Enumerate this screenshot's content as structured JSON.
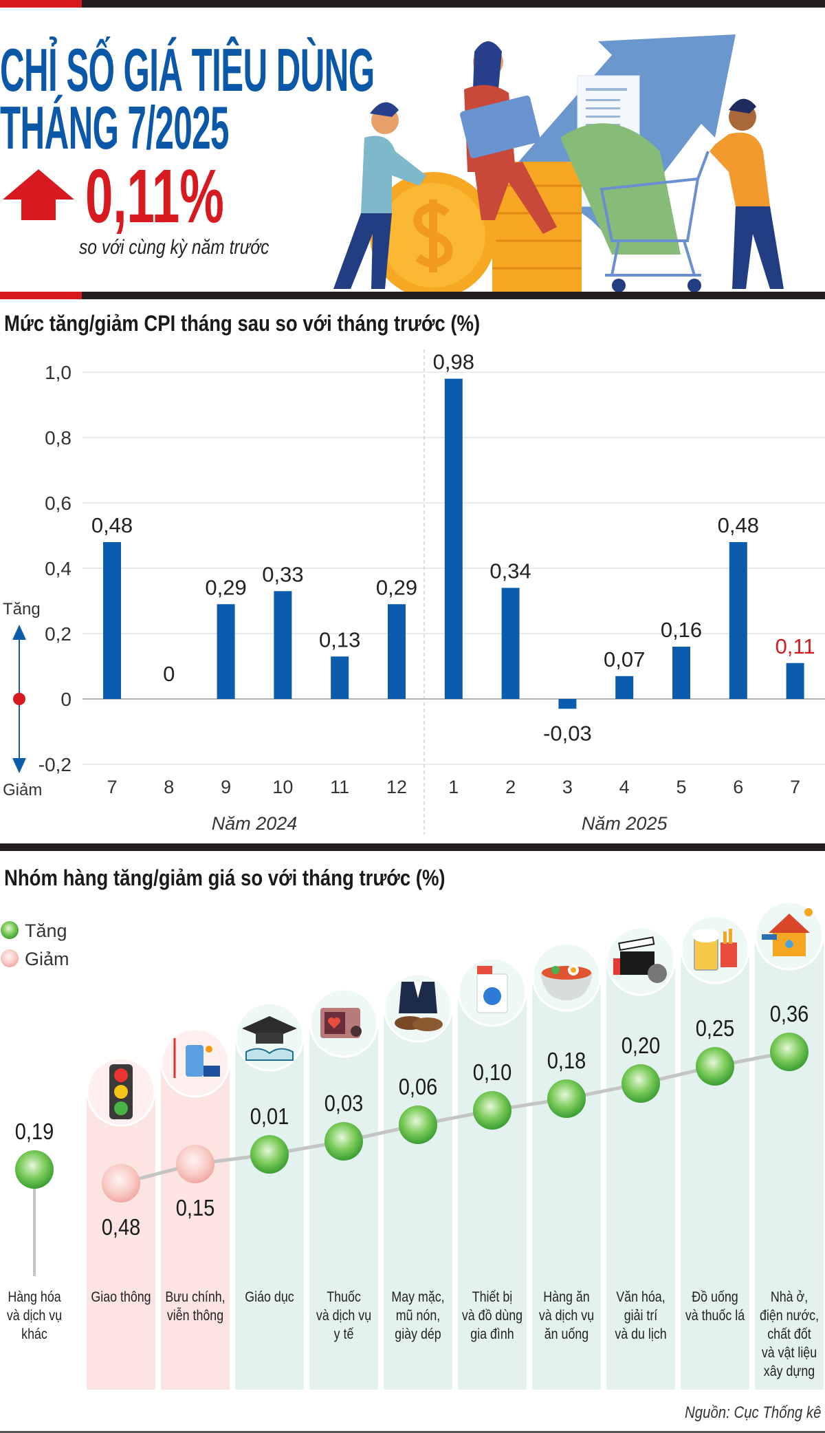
{
  "header": {
    "title_line1": "CHỈ SỐ GIÁ TIÊU DÙNG",
    "title_line2": "THÁNG 7/2025",
    "headline_value": "0,11%",
    "headline_direction": "up",
    "headline_subtitle": "so với cùng kỳ năm trước"
  },
  "colors": {
    "blue": "#0b5cad",
    "red": "#d71920",
    "dark": "#231f20",
    "green": "#3aa23a",
    "pink": "#f4aaa4"
  },
  "chart_data": [
    {
      "type": "bar",
      "title": "Mức tăng/giảm CPI tháng sau so với tháng trước (%)",
      "categories": [
        "7",
        "8",
        "9",
        "10",
        "11",
        "12",
        "1",
        "2",
        "3",
        "4",
        "5",
        "6",
        "7"
      ],
      "values": [
        0.48,
        0,
        0.29,
        0.33,
        0.13,
        0.29,
        0.98,
        0.34,
        -0.03,
        0.07,
        0.16,
        0.48,
        0.11
      ],
      "value_labels": [
        "0,48",
        "0",
        "0,29",
        "0,33",
        "0,13",
        "0,29",
        "0,98",
        "0,34",
        "-0,03",
        "0,07",
        "0,16",
        "0,48",
        "0,11"
      ],
      "highlight_index": 12,
      "year_groups": [
        {
          "label": "Năm 2024",
          "count": 6
        },
        {
          "label": "Năm 2025",
          "count": 7
        }
      ],
      "yticks": [
        1.0,
        0.8,
        0.6,
        0.4,
        0.2,
        0,
        -0.2
      ],
      "ytick_labels": [
        "1,0",
        "0,8",
        "0,6",
        "0,4",
        "0,2",
        "0",
        "-0,2"
      ],
      "ylim": [
        -0.2,
        1.0
      ],
      "grid": true,
      "legend": {
        "up": "Tăng",
        "down": "Giảm"
      }
    },
    {
      "type": "scatter",
      "title": "Nhóm hàng tăng/giảm giá so với tháng trước (%)",
      "legend": {
        "up": "Tăng",
        "down": "Giảm"
      },
      "items": [
        {
          "category": "Hàng hóa và dịch vụ khác",
          "lines": [
            "Hàng hóa",
            "và dịch vụ",
            "khác"
          ],
          "value": 0.19,
          "label": "0,19",
          "icon": "none"
        },
        {
          "category": "Giao thông",
          "lines": [
            "Giao thông"
          ],
          "value": -0.48,
          "label": "0,48",
          "icon": "traffic-light"
        },
        {
          "category": "Bưu chính, viễn thông",
          "lines": [
            "Bưu chính,",
            "viễn thông"
          ],
          "value": -0.15,
          "label": "0,15",
          "icon": "telecom"
        },
        {
          "category": "Giáo dục",
          "lines": [
            "Giáo dục"
          ],
          "value": 0.01,
          "label": "0,01",
          "icon": "graduation-cap"
        },
        {
          "category": "Thuốc và dịch vụ y tế",
          "lines": [
            "Thuốc",
            "và dịch vụ",
            "y tế"
          ],
          "value": 0.03,
          "label": "0,03",
          "icon": "medical"
        },
        {
          "category": "May mặc, mũ nón, giày dép",
          "lines": [
            "May mặc,",
            "mũ nón,",
            "giày dép"
          ],
          "value": 0.06,
          "label": "0,06",
          "icon": "clothing"
        },
        {
          "category": "Thiết bị và đồ dùng gia đình",
          "lines": [
            "Thiết bị",
            "và đồ dùng",
            "gia đình"
          ],
          "value": 0.1,
          "label": "0,10",
          "icon": "washing-machine"
        },
        {
          "category": "Hàng ăn và dịch vụ ăn uống",
          "lines": [
            "Hàng ăn",
            "và dịch vụ",
            "ăn uống"
          ],
          "value": 0.18,
          "label": "0,18",
          "icon": "food-bowl"
        },
        {
          "category": "Văn hóa, giải trí và du lịch",
          "lines": [
            "Văn hóa,",
            "giải trí",
            "và du lịch"
          ],
          "value": 0.2,
          "label": "0,20",
          "icon": "clapperboard"
        },
        {
          "category": "Đồ uống và thuốc lá",
          "lines": [
            "Đồ uống",
            "và thuốc lá"
          ],
          "value": 0.25,
          "label": "0,25",
          "icon": "beer"
        },
        {
          "category": "Nhà ở, điện nước, chất đốt và vật liệu xây dựng",
          "lines": [
            "Nhà ở,",
            "điện nước,",
            "chất đốt",
            "và vật liệu",
            "xây dựng"
          ],
          "value": 0.36,
          "label": "0,36",
          "icon": "house"
        }
      ]
    }
  ],
  "footer": {
    "source": "Nguồn: Cục Thống kê"
  }
}
